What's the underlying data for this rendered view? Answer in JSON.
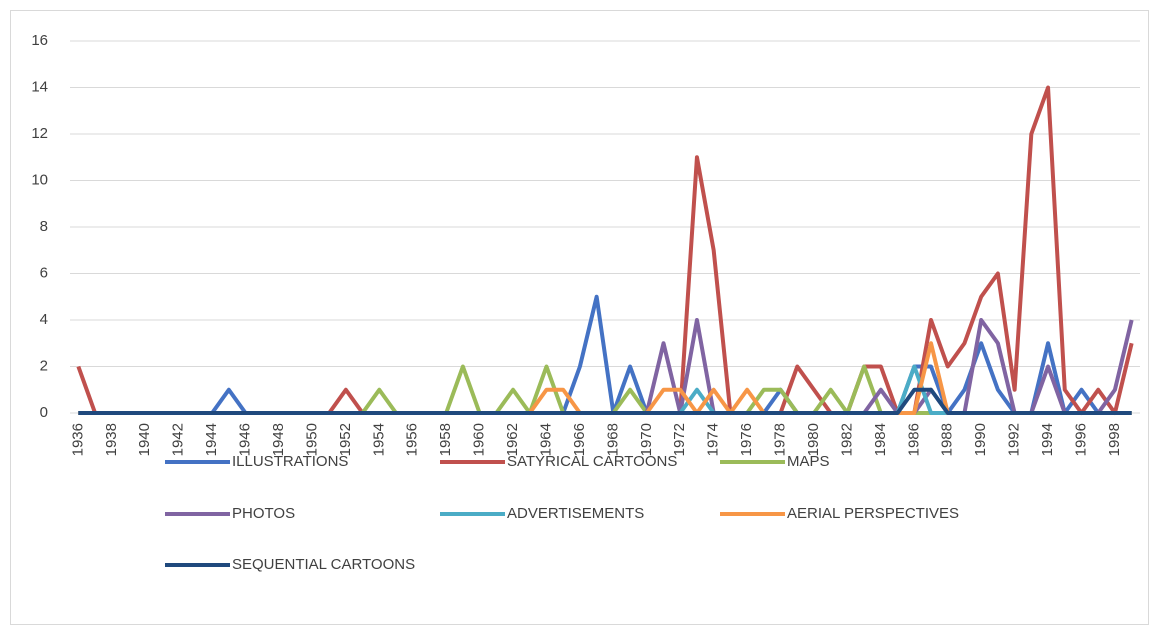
{
  "chart_data": {
    "type": "line",
    "categories": [
      "1936",
      null,
      "1938",
      null,
      "1940",
      null,
      "1942",
      null,
      "1944",
      null,
      "1946",
      null,
      "1948",
      null,
      "1950",
      null,
      "1952",
      null,
      "1954",
      null,
      "1956",
      null,
      "1958",
      null,
      "1960",
      null,
      "1962",
      null,
      "1964",
      null,
      "1966",
      null,
      "1968",
      null,
      "1970",
      null,
      "1972",
      null,
      "1974",
      null,
      "1976",
      null,
      "1978",
      null,
      "1980",
      null,
      "1982",
      null,
      "1984",
      null,
      "1986",
      null,
      "1988",
      null,
      "1990",
      null,
      "1992",
      null,
      "1994",
      null,
      "1996",
      null,
      "1998",
      null
    ],
    "series": [
      {
        "name": "ILLUSTRATIONS",
        "color": "#4472c4",
        "values": [
          0,
          0,
          0,
          0,
          0,
          0,
          0,
          0,
          0,
          1,
          0,
          0,
          0,
          0,
          0,
          0,
          0,
          0,
          0,
          0,
          0,
          0,
          0,
          0,
          0,
          0,
          0,
          0,
          0,
          0,
          2,
          5,
          0,
          2,
          0,
          0,
          0,
          0,
          0,
          0,
          0,
          0,
          1,
          0,
          0,
          0,
          0,
          0,
          0,
          0,
          2,
          2,
          0,
          1,
          3,
          1,
          0,
          0,
          3,
          0,
          1,
          0,
          0,
          0
        ]
      },
      {
        "name": "SATYRICAL CARTOONS",
        "color": "#c0504d",
        "values": [
          2,
          0,
          0,
          0,
          0,
          0,
          0,
          0,
          0,
          0,
          0,
          0,
          0,
          0,
          0,
          0,
          1,
          0,
          0,
          0,
          0,
          0,
          0,
          0,
          0,
          0,
          0,
          0,
          0,
          0,
          0,
          0,
          0,
          0,
          0,
          0,
          0,
          11,
          7,
          0,
          0,
          0,
          0,
          2,
          1,
          0,
          0,
          2,
          2,
          0,
          0,
          4,
          2,
          3,
          5,
          6,
          1,
          12,
          14,
          1,
          0,
          1,
          0,
          3
        ]
      },
      {
        "name": "MAPS",
        "color": "#9bbb59",
        "values": [
          0,
          0,
          0,
          0,
          0,
          0,
          0,
          0,
          0,
          0,
          0,
          0,
          0,
          0,
          0,
          0,
          0,
          0,
          1,
          0,
          0,
          0,
          0,
          2,
          0,
          0,
          1,
          0,
          2,
          0,
          0,
          0,
          0,
          1,
          0,
          0,
          0,
          0,
          0,
          0,
          0,
          1,
          1,
          0,
          0,
          1,
          0,
          2,
          0,
          0,
          0,
          0,
          0,
          0,
          0,
          0,
          0,
          0,
          0,
          0,
          0,
          0,
          0,
          0
        ]
      },
      {
        "name": "PHOTOS",
        "color": "#8064a2",
        "values": [
          0,
          0,
          0,
          0,
          0,
          0,
          0,
          0,
          0,
          0,
          0,
          0,
          0,
          0,
          0,
          0,
          0,
          0,
          0,
          0,
          0,
          0,
          0,
          0,
          0,
          0,
          0,
          0,
          0,
          0,
          0,
          0,
          0,
          0,
          0,
          3,
          0,
          4,
          0,
          0,
          0,
          0,
          0,
          0,
          0,
          0,
          0,
          0,
          1,
          0,
          0,
          1,
          0,
          0,
          4,
          3,
          0,
          0,
          2,
          0,
          0,
          0,
          1,
          4
        ]
      },
      {
        "name": "ADVERTISEMENTS",
        "color": "#4bacc6",
        "values": [
          0,
          0,
          0,
          0,
          0,
          0,
          0,
          0,
          0,
          0,
          0,
          0,
          0,
          0,
          0,
          0,
          0,
          0,
          0,
          0,
          0,
          0,
          0,
          0,
          0,
          0,
          0,
          0,
          0,
          0,
          0,
          0,
          0,
          0,
          0,
          0,
          0,
          1,
          0,
          0,
          0,
          0,
          0,
          0,
          0,
          0,
          0,
          0,
          0,
          0,
          2,
          0,
          0,
          0,
          0,
          0,
          0,
          0,
          0,
          0,
          0,
          0,
          0,
          0
        ]
      },
      {
        "name": "AERIAL PERSPECTIVES",
        "color": "#f79646",
        "values": [
          0,
          0,
          0,
          0,
          0,
          0,
          0,
          0,
          0,
          0,
          0,
          0,
          0,
          0,
          0,
          0,
          0,
          0,
          0,
          0,
          0,
          0,
          0,
          0,
          0,
          0,
          0,
          0,
          1,
          1,
          0,
          0,
          0,
          0,
          0,
          1,
          1,
          0,
          1,
          0,
          1,
          0,
          0,
          0,
          0,
          0,
          0,
          0,
          0,
          0,
          0,
          3,
          0,
          0,
          0,
          0,
          0,
          0,
          0,
          0,
          0,
          0,
          0,
          0
        ]
      },
      {
        "name": "SEQUENTIAL CARTOONS",
        "color": "#1f497d",
        "values": [
          0,
          0,
          0,
          0,
          0,
          0,
          0,
          0,
          0,
          0,
          0,
          0,
          0,
          0,
          0,
          0,
          0,
          0,
          0,
          0,
          0,
          0,
          0,
          0,
          0,
          0,
          0,
          0,
          0,
          0,
          0,
          0,
          0,
          0,
          0,
          0,
          0,
          0,
          0,
          0,
          0,
          0,
          0,
          0,
          0,
          0,
          0,
          0,
          0,
          0,
          1,
          1,
          0,
          0,
          0,
          0,
          0,
          0,
          0,
          0,
          0,
          0,
          0,
          0
        ]
      }
    ],
    "ylim": [
      0,
      16
    ],
    "yticks": [
      0,
      2,
      4,
      6,
      8,
      10,
      12,
      14,
      16
    ],
    "grid": true,
    "legend": "bottom"
  }
}
